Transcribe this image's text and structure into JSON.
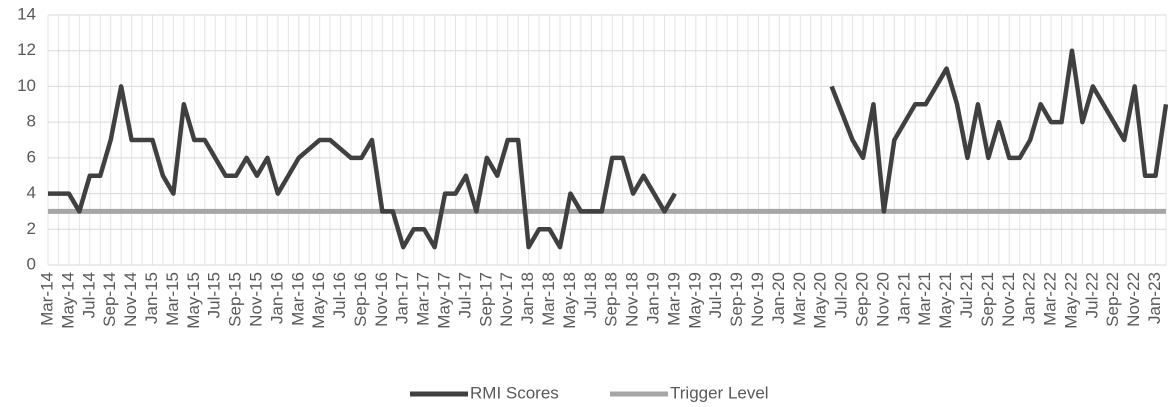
{
  "chart_data": {
    "type": "line",
    "categories": [
      "Mar-14",
      null,
      "May-14",
      null,
      "Jul-14",
      null,
      "Sep-14",
      null,
      "Nov-14",
      null,
      "Jan-15",
      null,
      "Mar-15",
      null,
      "May-15",
      null,
      "Jul-15",
      null,
      "Sep-15",
      null,
      "Nov-15",
      null,
      "Jan-16",
      null,
      "Mar-16",
      null,
      "May-16",
      null,
      "Jul-16",
      null,
      "Sep-16",
      null,
      "Nov-16",
      null,
      "Jan-17",
      null,
      "Mar-17",
      null,
      "May-17",
      null,
      "Jul-17",
      null,
      "Sep-17",
      null,
      "Nov-17",
      null,
      "Jan-18",
      null,
      "Mar-18",
      null,
      "May-18",
      null,
      "Jul-18",
      null,
      "Sep-18",
      null,
      "Nov-18",
      null,
      "Jan-19",
      null,
      "Mar-19",
      null,
      "May-19",
      null,
      "Jul-19",
      null,
      "Sep-19",
      null,
      "Nov-19",
      null,
      "Jan-20",
      null,
      "Mar-20",
      null,
      "May-20",
      null,
      "Jul-20",
      null,
      "Sep-20",
      null,
      "Nov-20",
      null,
      "Jan-21",
      null,
      "Mar-21",
      null,
      "May-21",
      null,
      "Jul-21",
      null,
      "Sep-21",
      null,
      "Nov-21",
      null,
      "Jan-22",
      null,
      "Mar-22",
      null,
      "May-22",
      null,
      "Jul-22",
      null,
      "Sep-22",
      null,
      "Nov-22",
      null,
      "Jan-23",
      null
    ],
    "series": [
      {
        "name": "RMI Scores",
        "color": "#404040",
        "values": [
          4,
          4,
          4,
          3,
          5,
          5,
          7,
          10,
          7,
          7,
          7,
          5,
          4,
          9,
          7,
          7,
          6,
          5,
          5,
          6,
          5,
          6,
          4,
          5,
          6,
          6.5,
          7,
          7,
          6.5,
          6,
          6,
          7,
          3,
          3,
          1,
          2,
          2,
          1,
          4,
          4,
          5,
          3,
          6,
          5,
          7,
          7,
          1,
          2,
          2,
          1,
          4,
          3,
          3,
          3,
          6,
          6,
          4,
          5,
          4,
          3,
          4,
          null,
          null,
          null,
          null,
          null,
          null,
          null,
          null,
          null,
          null,
          null,
          null,
          null,
          null,
          10,
          8.5,
          7,
          6,
          9,
          3,
          7,
          8,
          9,
          9,
          10,
          11,
          9,
          6,
          9,
          6,
          8,
          6,
          6,
          7,
          9,
          8,
          8,
          12,
          8,
          10,
          9,
          8,
          7,
          10,
          5,
          5,
          9
        ]
      },
      {
        "name": "Trigger Level",
        "color": "#a6a6a6",
        "values": [
          3,
          3,
          3,
          3,
          3,
          3,
          3,
          3,
          3,
          3,
          3,
          3,
          3,
          3,
          3,
          3,
          3,
          3,
          3,
          3,
          3,
          3,
          3,
          3,
          3,
          3,
          3,
          3,
          3,
          3,
          3,
          3,
          3,
          3,
          3,
          3,
          3,
          3,
          3,
          3,
          3,
          3,
          3,
          3,
          3,
          3,
          3,
          3,
          3,
          3,
          3,
          3,
          3,
          3,
          3,
          3,
          3,
          3,
          3,
          3,
          3,
          3,
          3,
          3,
          3,
          3,
          3,
          3,
          3,
          3,
          3,
          3,
          3,
          3,
          3,
          3,
          3,
          3,
          3,
          3,
          3,
          3,
          3,
          3,
          3,
          3,
          3,
          3,
          3,
          3,
          3,
          3,
          3,
          3,
          3,
          3,
          3,
          3,
          3,
          3,
          3,
          3,
          3,
          3,
          3,
          3,
          3,
          3
        ]
      }
    ],
    "ylim": [
      0,
      14
    ],
    "yticks": [
      0,
      2,
      4,
      6,
      8,
      10,
      12,
      14
    ],
    "grid": true,
    "legend": "bottom"
  }
}
